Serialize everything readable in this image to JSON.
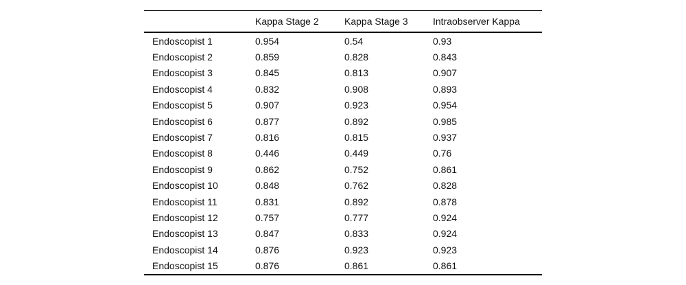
{
  "table": {
    "columns": [
      "",
      "Kappa Stage 2",
      "Kappa Stage 3",
      "Intraobserver Kappa"
    ],
    "rows": [
      {
        "label": "Endoscopist 1",
        "values": [
          "0.954",
          "0.54",
          "0.93"
        ]
      },
      {
        "label": "Endoscopist 2",
        "values": [
          "0.859",
          "0.828",
          "0.843"
        ]
      },
      {
        "label": "Endoscopist 3",
        "values": [
          "0.845",
          "0.813",
          "0.907"
        ]
      },
      {
        "label": "Endoscopist 4",
        "values": [
          "0.832",
          "0.908",
          "0.893"
        ]
      },
      {
        "label": "Endoscopist 5",
        "values": [
          "0.907",
          "0.923",
          "0.954"
        ]
      },
      {
        "label": "Endoscopist 6",
        "values": [
          "0.877",
          "0.892",
          "0.985"
        ]
      },
      {
        "label": "Endoscopist 7",
        "values": [
          "0.816",
          "0.815",
          "0.937"
        ]
      },
      {
        "label": "Endoscopist 8",
        "values": [
          "0.446",
          "0.449",
          "0.76"
        ]
      },
      {
        "label": "Endoscopist 9",
        "values": [
          "0.862",
          "0.752",
          "0.861"
        ]
      },
      {
        "label": "Endoscopist 10",
        "values": [
          "0.848",
          "0.762",
          "0.828"
        ]
      },
      {
        "label": "Endoscopist 11",
        "values": [
          "0.831",
          "0.892",
          "0.878"
        ]
      },
      {
        "label": "Endoscopist 12",
        "values": [
          "0.757",
          "0.777",
          "0.924"
        ]
      },
      {
        "label": "Endoscopist 13",
        "values": [
          "0.847",
          "0.833",
          "0.924"
        ]
      },
      {
        "label": "Endoscopist 14",
        "values": [
          "0.876",
          "0.923",
          "0.923"
        ]
      },
      {
        "label": "Endoscopist 15",
        "values": [
          "0.876",
          "0.861",
          "0.861"
        ]
      }
    ]
  },
  "colors": {
    "text": "#111111",
    "rule": "#000000",
    "background": "#ffffff"
  },
  "chart_data": {
    "type": "table",
    "title": "",
    "columns": [
      "",
      "Kappa Stage 2",
      "Kappa Stage 3",
      "Intraobserver Kappa"
    ],
    "rows": [
      [
        "Endoscopist 1",
        0.954,
        0.54,
        0.93
      ],
      [
        "Endoscopist 2",
        0.859,
        0.828,
        0.843
      ],
      [
        "Endoscopist 3",
        0.845,
        0.813,
        0.907
      ],
      [
        "Endoscopist 4",
        0.832,
        0.908,
        0.893
      ],
      [
        "Endoscopist 5",
        0.907,
        0.923,
        0.954
      ],
      [
        "Endoscopist 6",
        0.877,
        0.892,
        0.985
      ],
      [
        "Endoscopist 7",
        0.816,
        0.815,
        0.937
      ],
      [
        "Endoscopist 8",
        0.446,
        0.449,
        0.76
      ],
      [
        "Endoscopist 9",
        0.862,
        0.752,
        0.861
      ],
      [
        "Endoscopist 10",
        0.848,
        0.762,
        0.828
      ],
      [
        "Endoscopist 11",
        0.831,
        0.892,
        0.878
      ],
      [
        "Endoscopist 12",
        0.757,
        0.777,
        0.924
      ],
      [
        "Endoscopist 13",
        0.847,
        0.833,
        0.924
      ],
      [
        "Endoscopist 14",
        0.876,
        0.923,
        0.923
      ],
      [
        "Endoscopist 15",
        0.876,
        0.861,
        0.861
      ]
    ]
  }
}
